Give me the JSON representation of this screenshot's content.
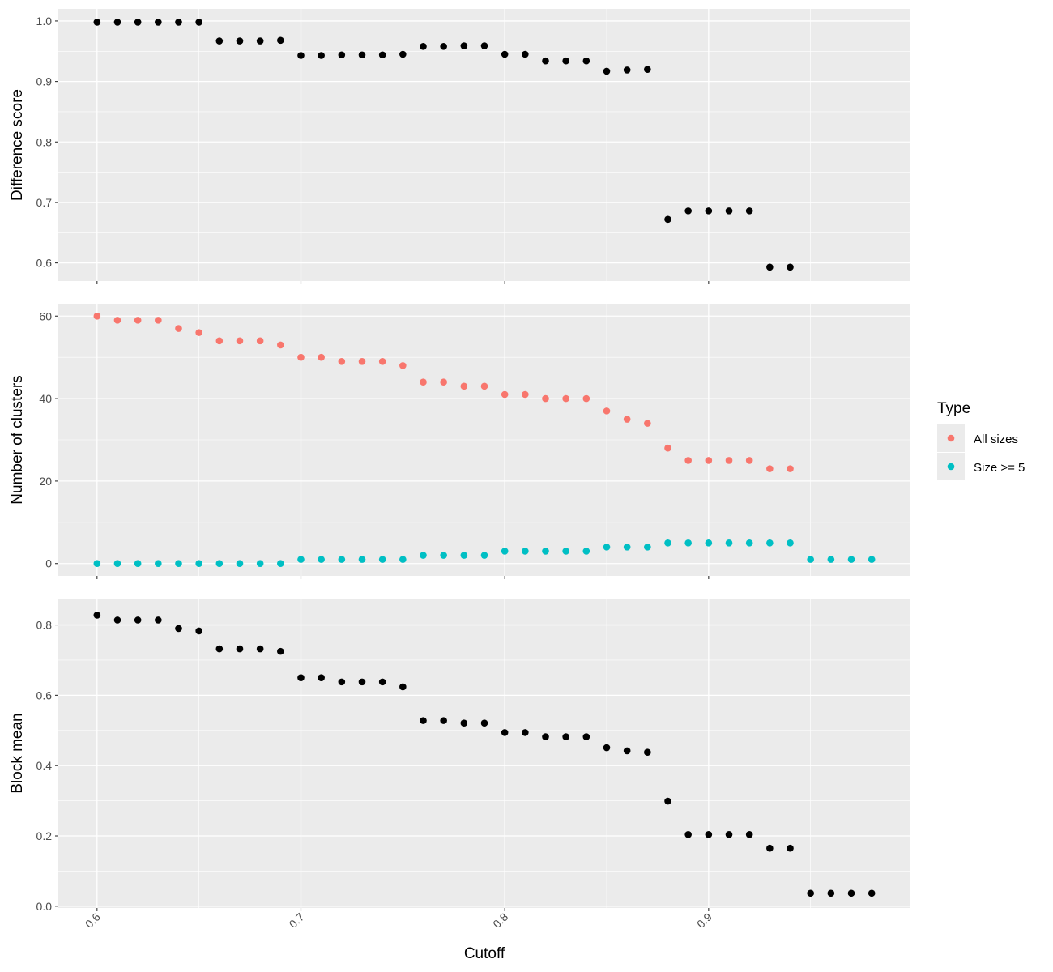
{
  "chart_data": [
    {
      "type": "scatter",
      "ylabel": "Difference score",
      "ylim": [
        0.57,
        1.02
      ],
      "yticks": [
        "0.6",
        "0.7",
        "0.8",
        "0.9",
        "1.0"
      ],
      "grid": true,
      "series": [
        {
          "color": "#000000",
          "x": [
            0.6,
            0.61,
            0.62,
            0.63,
            0.64,
            0.65,
            0.66,
            0.67,
            0.68,
            0.69,
            0.7,
            0.71,
            0.72,
            0.73,
            0.74,
            0.75,
            0.76,
            0.77,
            0.78,
            0.79,
            0.8,
            0.81,
            0.82,
            0.83,
            0.84,
            0.85,
            0.86,
            0.87,
            0.88,
            0.89,
            0.9,
            0.91,
            0.92,
            0.93,
            0.94
          ],
          "y": [
            0.998,
            0.998,
            0.998,
            0.998,
            0.998,
            0.998,
            0.967,
            0.967,
            0.967,
            0.968,
            0.943,
            0.943,
            0.944,
            0.944,
            0.944,
            0.945,
            0.958,
            0.958,
            0.959,
            0.959,
            0.945,
            0.945,
            0.934,
            0.934,
            0.934,
            0.917,
            0.919,
            0.92,
            0.672,
            0.686,
            0.686,
            0.686,
            0.686,
            0.593,
            0.593
          ]
        }
      ]
    },
    {
      "type": "scatter",
      "ylabel": "Number of clusters",
      "ylim": [
        -3,
        63
      ],
      "yticks": [
        "0",
        "20",
        "40",
        "60"
      ],
      "grid": true,
      "legend": {
        "title": "Type",
        "position": "right",
        "entries": [
          {
            "label": "All sizes",
            "color": "#F8766D"
          },
          {
            "label": "Size >= 5",
            "color": "#00BFC4"
          }
        ]
      },
      "series": [
        {
          "name": "All sizes",
          "color": "#F8766D",
          "x": [
            0.6,
            0.61,
            0.62,
            0.63,
            0.64,
            0.65,
            0.66,
            0.67,
            0.68,
            0.69,
            0.7,
            0.71,
            0.72,
            0.73,
            0.74,
            0.75,
            0.76,
            0.77,
            0.78,
            0.79,
            0.8,
            0.81,
            0.82,
            0.83,
            0.84,
            0.85,
            0.86,
            0.87,
            0.88,
            0.89,
            0.9,
            0.91,
            0.92,
            0.93,
            0.94
          ],
          "y": [
            60,
            59,
            59,
            59,
            57,
            56,
            54,
            54,
            54,
            53,
            50,
            50,
            49,
            49,
            49,
            48,
            44,
            44,
            43,
            43,
            41,
            41,
            40,
            40,
            40,
            37,
            35,
            34,
            28,
            25,
            25,
            25,
            25,
            23,
            23
          ]
        },
        {
          "name": "Size >= 5",
          "color": "#00BFC4",
          "x": [
            0.6,
            0.61,
            0.62,
            0.63,
            0.64,
            0.65,
            0.66,
            0.67,
            0.68,
            0.69,
            0.7,
            0.71,
            0.72,
            0.73,
            0.74,
            0.75,
            0.76,
            0.77,
            0.78,
            0.79,
            0.8,
            0.81,
            0.82,
            0.83,
            0.84,
            0.85,
            0.86,
            0.87,
            0.88,
            0.89,
            0.9,
            0.91,
            0.92,
            0.93,
            0.94,
            0.95,
            0.96,
            0.97,
            0.98
          ],
          "y": [
            0,
            0,
            0,
            0,
            0,
            0,
            0,
            0,
            0,
            0,
            1,
            1,
            1,
            1,
            1,
            1,
            2,
            2,
            2,
            2,
            3,
            3,
            3,
            3,
            3,
            4,
            4,
            4,
            5,
            5,
            5,
            5,
            5,
            5,
            5,
            1,
            1,
            1,
            1
          ]
        }
      ]
    },
    {
      "type": "scatter",
      "ylabel": "Block mean",
      "xlabel": "Cutoff",
      "ylim": [
        -0.005,
        0.875
      ],
      "yticks": [
        "0.0",
        "0.2",
        "0.4",
        "0.6",
        "0.8"
      ],
      "grid": true,
      "series": [
        {
          "color": "#000000",
          "x": [
            0.6,
            0.61,
            0.62,
            0.63,
            0.64,
            0.65,
            0.66,
            0.67,
            0.68,
            0.69,
            0.7,
            0.71,
            0.72,
            0.73,
            0.74,
            0.75,
            0.76,
            0.77,
            0.78,
            0.79,
            0.8,
            0.81,
            0.82,
            0.83,
            0.84,
            0.85,
            0.86,
            0.87,
            0.88,
            0.89,
            0.9,
            0.91,
            0.92,
            0.93,
            0.94,
            0.95,
            0.96,
            0.97,
            0.98
          ],
          "y": [
            0.828,
            0.814,
            0.814,
            0.814,
            0.79,
            0.783,
            0.732,
            0.732,
            0.732,
            0.725,
            0.65,
            0.65,
            0.638,
            0.638,
            0.638,
            0.624,
            0.528,
            0.528,
            0.521,
            0.521,
            0.494,
            0.494,
            0.482,
            0.482,
            0.482,
            0.451,
            0.442,
            0.438,
            0.299,
            0.204,
            0.204,
            0.204,
            0.204,
            0.165,
            0.165,
            0.037,
            0.037,
            0.037,
            0.037
          ]
        }
      ]
    }
  ],
  "x_axis": {
    "label": "Cutoff",
    "xlim": [
      0.581,
      0.999
    ],
    "ticks": [
      "0.6",
      "0.7",
      "0.8",
      "0.9"
    ]
  }
}
